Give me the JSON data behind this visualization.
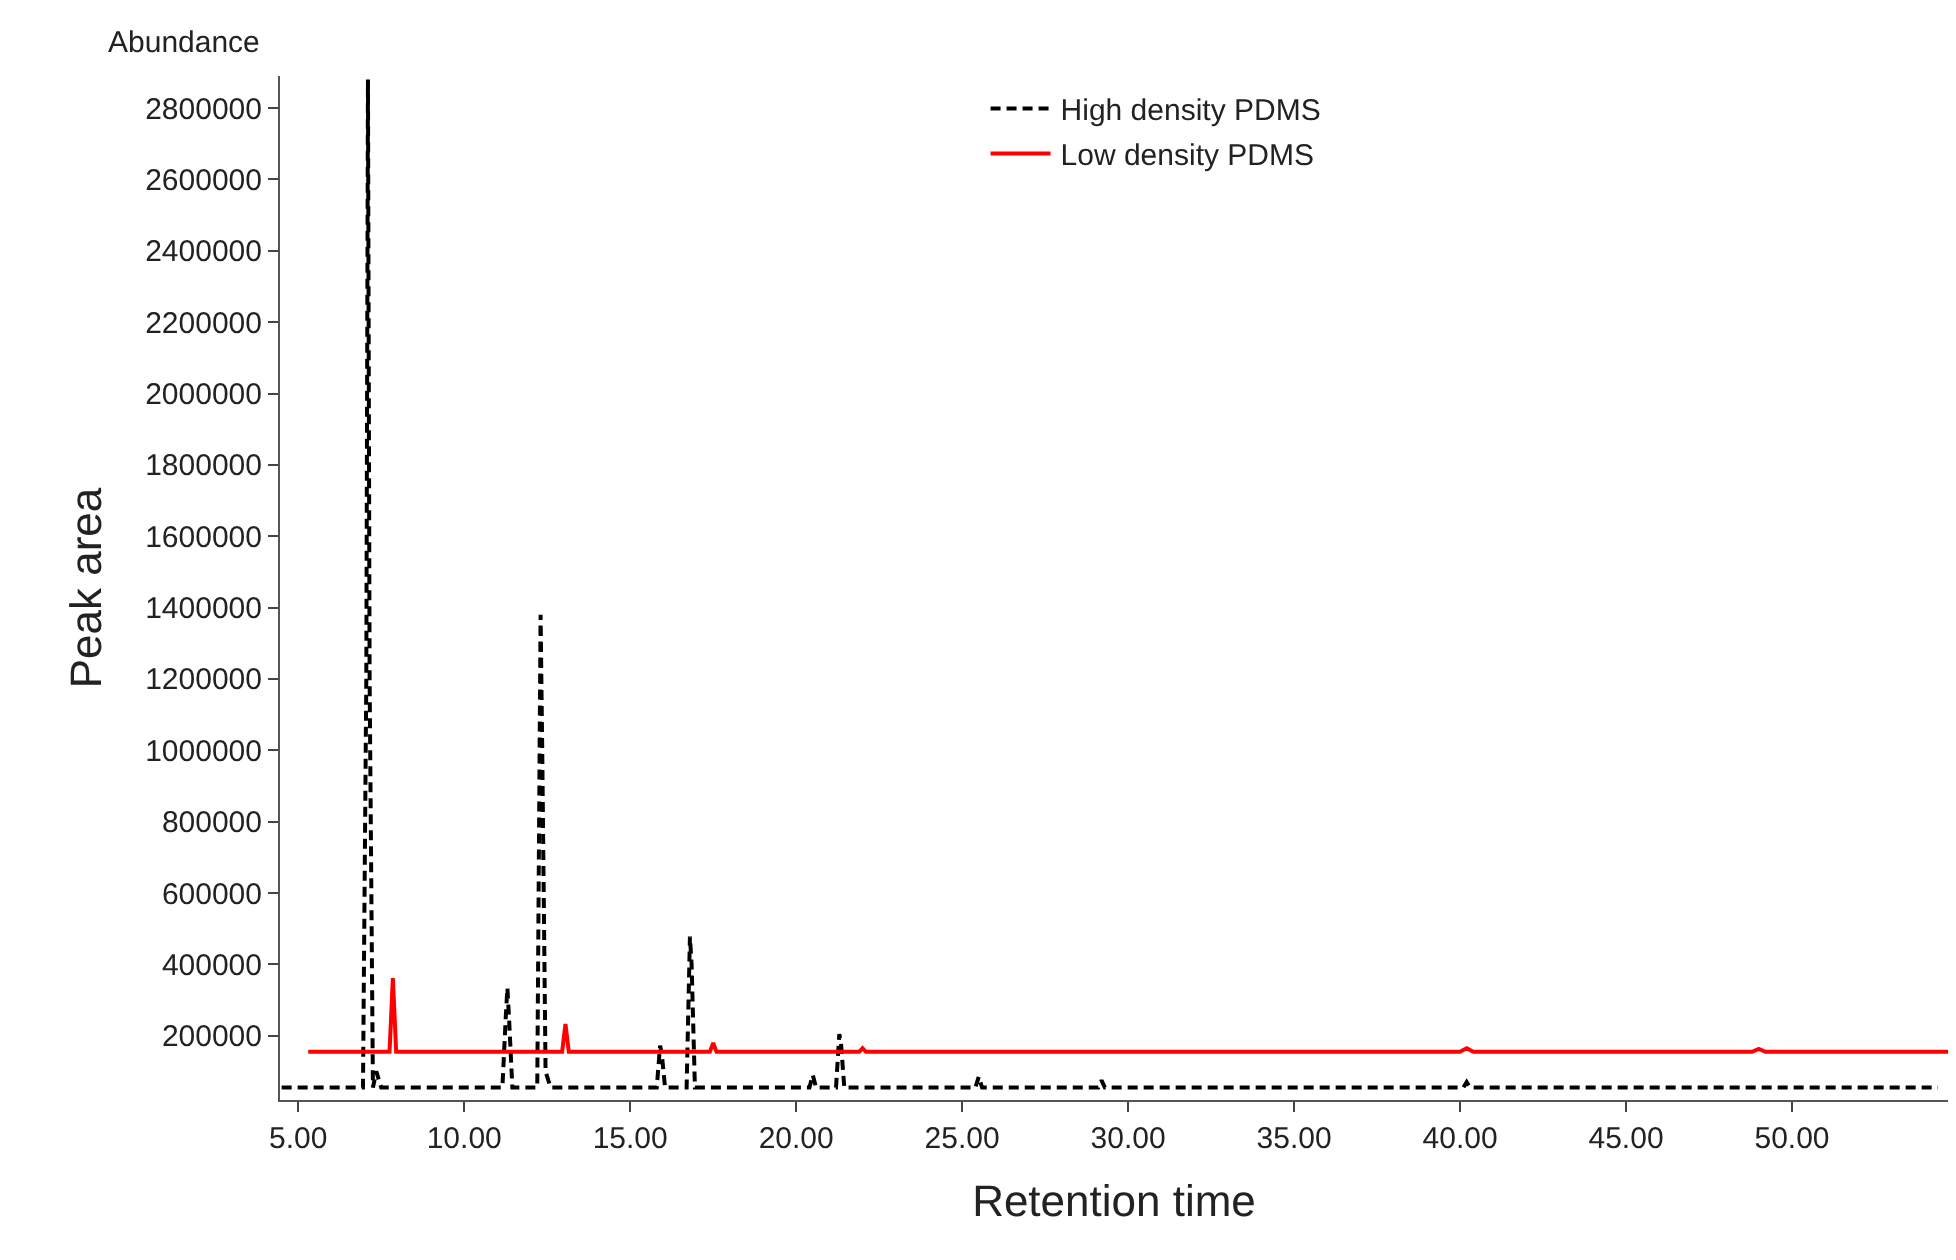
{
  "chart_data": {
    "type": "line",
    "xlabel": "Retention time",
    "ylabel": "Peak area",
    "annotations": [
      "Abundance"
    ],
    "xlim": [
      4.45,
      54.7
    ],
    "xticks": [
      {
        "value": 5,
        "label": "5.00"
      },
      {
        "value": 10,
        "label": "10.00"
      },
      {
        "value": 15,
        "label": "15.00"
      },
      {
        "value": 20,
        "label": "20.00"
      },
      {
        "value": 25,
        "label": "25.00"
      },
      {
        "value": 30,
        "label": "30.00"
      },
      {
        "value": 35,
        "label": "35.00"
      },
      {
        "value": 40,
        "label": "40.00"
      },
      {
        "value": 45,
        "label": "45.00"
      },
      {
        "value": 50,
        "label": "50.00"
      }
    ],
    "ylim": [
      20000,
      2890000
    ],
    "yticks": [
      200000,
      400000,
      600000,
      800000,
      1000000,
      1200000,
      1400000,
      1600000,
      1800000,
      2000000,
      2200000,
      2400000,
      2600000,
      2800000
    ],
    "legend": "top right",
    "marker": "none",
    "series": [
      {
        "name": "High density PDMS",
        "color": "#000000",
        "line_style": "dashed",
        "x": [
          4.5,
          6.95,
          7.05,
          7.1,
          7.15,
          7.25,
          7.35,
          7.5,
          11.15,
          11.25,
          11.3,
          11.35,
          11.45,
          12.2,
          12.3,
          12.35,
          12.45,
          12.6,
          15.8,
          15.9,
          15.95,
          16.05,
          16.7,
          16.8,
          16.85,
          16.95,
          20.4,
          20.5,
          20.6,
          21.2,
          21.3,
          21.35,
          21.45,
          25.4,
          25.5,
          25.6,
          29.1,
          29.2,
          29.3,
          40.1,
          40.2,
          40.3,
          54.4
        ],
        "values": [
          55000,
          55000,
          1200000,
          2880000,
          1200000,
          55000,
          100000,
          55000,
          55000,
          250000,
          334000,
          250000,
          55000,
          55000,
          1380000,
          1000000,
          100000,
          55000,
          55000,
          172000,
          150000,
          55000,
          55000,
          478000,
          400000,
          55000,
          55000,
          90000,
          55000,
          55000,
          205000,
          180000,
          55000,
          55000,
          85000,
          55000,
          55000,
          75000,
          55000,
          55000,
          70000,
          55000,
          55000
        ]
      },
      {
        "name": "Low density PDMS",
        "color": "#ff0000",
        "line_style": "solid",
        "x": [
          5.3,
          7.75,
          7.85,
          7.95,
          8.1,
          12.95,
          13.05,
          13.15,
          17.4,
          17.5,
          17.6,
          21.9,
          22.0,
          22.1,
          40.0,
          40.2,
          40.4,
          48.8,
          49.0,
          49.2,
          54.7
        ],
        "values": [
          155000,
          155000,
          362000,
          155000,
          155000,
          155000,
          233000,
          155000,
          155000,
          180000,
          155000,
          155000,
          165000,
          155000,
          155000,
          165000,
          155000,
          155000,
          163000,
          155000,
          155000
        ]
      }
    ]
  }
}
